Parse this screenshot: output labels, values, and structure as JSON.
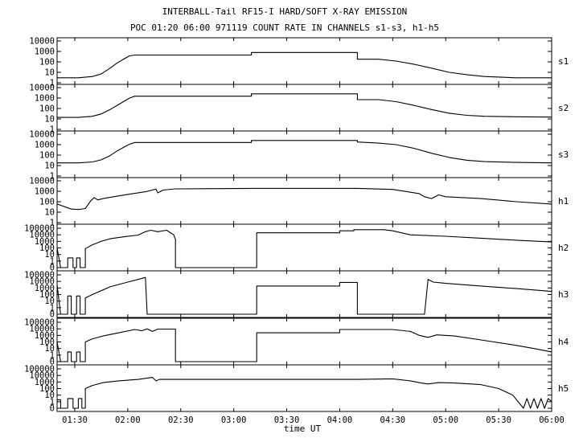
{
  "chart_data": {
    "type": "line",
    "title": "INTERBALL-Tail RF15-I HARD/SOFT X-RAY EMISSION",
    "subtitle": "POC 01:20 06:00 971119  COUNT RATE IN CHANNELS s1-s3, h1-h5",
    "xlabel": "time UT",
    "x_range_minutes_ut": [
      80,
      360
    ],
    "x_ticks": [
      {
        "t": 90,
        "label": "01:30"
      },
      {
        "t": 120,
        "label": "02:00"
      },
      {
        "t": 150,
        "label": "02:30"
      },
      {
        "t": 180,
        "label": "03:00"
      },
      {
        "t": 210,
        "label": "03:30"
      },
      {
        "t": 240,
        "label": "04:00"
      },
      {
        "t": 270,
        "label": "04:30"
      },
      {
        "t": 300,
        "label": "05:00"
      },
      {
        "t": 330,
        "label": "05:30"
      },
      {
        "t": 360,
        "label": "06:00"
      }
    ],
    "y_scale": "log",
    "series": [
      {
        "name": "s1",
        "y_ticks": [
          "10000",
          "1000",
          "100",
          "10",
          "1"
        ],
        "ylim": [
          1,
          10000
        ],
        "points": [
          [
            80,
            3
          ],
          [
            92,
            3
          ],
          [
            100,
            4
          ],
          [
            105,
            7
          ],
          [
            110,
            25
          ],
          [
            114,
            80
          ],
          [
            118,
            200
          ],
          [
            121,
            380
          ],
          [
            124,
            450
          ],
          [
            130,
            450
          ],
          [
            147,
            450
          ],
          [
            190,
            450
          ],
          [
            190,
            800
          ],
          [
            250,
            800
          ],
          [
            250,
            180
          ],
          [
            262,
            180
          ],
          [
            272,
            120
          ],
          [
            282,
            60
          ],
          [
            292,
            25
          ],
          [
            302,
            10
          ],
          [
            312,
            6
          ],
          [
            322,
            4
          ],
          [
            340,
            3
          ],
          [
            360,
            3
          ]
        ]
      },
      {
        "name": "s2",
        "y_ticks": [
          "10000",
          "1000",
          "100",
          "10",
          "1"
        ],
        "ylim": [
          1,
          10000
        ],
        "points": [
          [
            80,
            14
          ],
          [
            92,
            14
          ],
          [
            100,
            18
          ],
          [
            105,
            30
          ],
          [
            110,
            80
          ],
          [
            114,
            200
          ],
          [
            118,
            500
          ],
          [
            121,
            1000
          ],
          [
            124,
            1500
          ],
          [
            130,
            1500
          ],
          [
            147,
            1500
          ],
          [
            190,
            1500
          ],
          [
            190,
            2500
          ],
          [
            250,
            2500
          ],
          [
            250,
            700
          ],
          [
            262,
            700
          ],
          [
            272,
            450
          ],
          [
            282,
            200
          ],
          [
            292,
            80
          ],
          [
            302,
            35
          ],
          [
            312,
            22
          ],
          [
            322,
            18
          ],
          [
            340,
            16
          ],
          [
            360,
            15
          ]
        ]
      },
      {
        "name": "s3",
        "y_ticks": [
          "10000",
          "1000",
          "100",
          "10",
          "1"
        ],
        "ylim": [
          1,
          10000
        ],
        "points": [
          [
            80,
            18
          ],
          [
            92,
            18
          ],
          [
            100,
            22
          ],
          [
            105,
            35
          ],
          [
            110,
            90
          ],
          [
            114,
            250
          ],
          [
            118,
            600
          ],
          [
            121,
            1100
          ],
          [
            124,
            1600
          ],
          [
            130,
            1600
          ],
          [
            147,
            1600
          ],
          [
            190,
            1600
          ],
          [
            190,
            2500
          ],
          [
            250,
            2500
          ],
          [
            250,
            1800
          ],
          [
            262,
            1400
          ],
          [
            272,
            1000
          ],
          [
            282,
            450
          ],
          [
            292,
            150
          ],
          [
            302,
            60
          ],
          [
            312,
            32
          ],
          [
            322,
            24
          ],
          [
            340,
            20
          ],
          [
            360,
            18
          ]
        ]
      },
      {
        "name": "h1",
        "y_ticks": [
          "10000",
          "1000",
          "100",
          "10",
          "1"
        ],
        "ylim": [
          1,
          10000
        ],
        "points": [
          [
            80,
            60
          ],
          [
            85,
            30
          ],
          [
            88,
            20
          ],
          [
            92,
            18
          ],
          [
            96,
            22
          ],
          [
            99,
            120
          ],
          [
            101,
            250
          ],
          [
            103,
            150
          ],
          [
            106,
            200
          ],
          [
            112,
            300
          ],
          [
            120,
            500
          ],
          [
            130,
            900
          ],
          [
            136,
            1600
          ],
          [
            137,
            700
          ],
          [
            140,
            1300
          ],
          [
            147,
            1700
          ],
          [
            190,
            1900
          ],
          [
            250,
            1900
          ],
          [
            270,
            1500
          ],
          [
            285,
            600
          ],
          [
            288,
            300
          ],
          [
            292,
            200
          ],
          [
            296,
            450
          ],
          [
            300,
            300
          ],
          [
            320,
            200
          ],
          [
            340,
            100
          ],
          [
            360,
            60
          ]
        ]
      },
      {
        "name": "h2",
        "y_ticks": [
          "100000",
          "10000",
          "1000",
          "100",
          "10",
          "1",
          "0"
        ],
        "ylim": [
          0,
          100000
        ],
        "points": [
          [
            80,
            100
          ],
          [
            82,
            0
          ],
          [
            86,
            0
          ],
          [
            86,
            3
          ],
          [
            89,
            3
          ],
          [
            89,
            0
          ],
          [
            91,
            0
          ],
          [
            91,
            3
          ],
          [
            93,
            3
          ],
          [
            93,
            0
          ],
          [
            96,
            0
          ],
          [
            96,
            80
          ],
          [
            100,
            300
          ],
          [
            105,
            1000
          ],
          [
            110,
            2500
          ],
          [
            118,
            5000
          ],
          [
            126,
            9000
          ],
          [
            130,
            30000
          ],
          [
            133,
            50000
          ],
          [
            137,
            30000
          ],
          [
            142,
            50000
          ],
          [
            146,
            10000
          ],
          [
            147,
            2000
          ],
          [
            147,
            0
          ],
          [
            193,
            0
          ],
          [
            193,
            20000
          ],
          [
            240,
            20000
          ],
          [
            240,
            40000
          ],
          [
            248,
            40000
          ],
          [
            248,
            60000
          ],
          [
            265,
            60000
          ],
          [
            270,
            40000
          ],
          [
            280,
            10000
          ],
          [
            300,
            6000
          ],
          [
            320,
            3000
          ],
          [
            340,
            1500
          ],
          [
            360,
            800
          ]
        ]
      },
      {
        "name": "h3",
        "y_ticks": [
          "100000",
          "10000",
          "1000",
          "100",
          "10",
          "1",
          "0"
        ],
        "ylim": [
          0,
          100000
        ],
        "points": [
          [
            80,
            3000
          ],
          [
            82,
            0
          ],
          [
            86,
            0
          ],
          [
            86,
            60
          ],
          [
            88,
            60
          ],
          [
            88,
            0
          ],
          [
            91,
            0
          ],
          [
            91,
            60
          ],
          [
            93,
            60
          ],
          [
            93,
            0
          ],
          [
            96,
            0
          ],
          [
            96,
            30
          ],
          [
            100,
            100
          ],
          [
            110,
            1500
          ],
          [
            120,
            8000
          ],
          [
            126,
            20000
          ],
          [
            130,
            40000
          ],
          [
            131,
            0
          ],
          [
            193,
            0
          ],
          [
            193,
            2000
          ],
          [
            240,
            2000
          ],
          [
            240,
            7000
          ],
          [
            250,
            7000
          ],
          [
            250,
            0
          ],
          [
            288,
            0
          ],
          [
            290,
            20000
          ],
          [
            293,
            8000
          ],
          [
            300,
            5000
          ],
          [
            320,
            2000
          ],
          [
            340,
            800
          ],
          [
            360,
            300
          ]
        ]
      },
      {
        "name": "h4",
        "y_ticks": [
          "100000",
          "10000",
          "1000",
          "100",
          "10",
          "1",
          "0"
        ],
        "ylim": [
          0,
          100000
        ],
        "points": [
          [
            80,
            100
          ],
          [
            82,
            0
          ],
          [
            86,
            0
          ],
          [
            86,
            3
          ],
          [
            88,
            3
          ],
          [
            88,
            0
          ],
          [
            91,
            0
          ],
          [
            91,
            3
          ],
          [
            93,
            3
          ],
          [
            93,
            0
          ],
          [
            96,
            0
          ],
          [
            96,
            100
          ],
          [
            100,
            300
          ],
          [
            106,
            800
          ],
          [
            115,
            2500
          ],
          [
            124,
            8000
          ],
          [
            128,
            5000
          ],
          [
            131,
            10000
          ],
          [
            134,
            4000
          ],
          [
            137,
            9000
          ],
          [
            147,
            9000
          ],
          [
            147,
            0
          ],
          [
            193,
            0
          ],
          [
            193,
            2500
          ],
          [
            240,
            2500
          ],
          [
            240,
            8000
          ],
          [
            270,
            8000
          ],
          [
            280,
            4000
          ],
          [
            285,
            1000
          ],
          [
            290,
            500
          ],
          [
            295,
            1200
          ],
          [
            305,
            800
          ],
          [
            320,
            200
          ],
          [
            340,
            30
          ],
          [
            350,
            10
          ],
          [
            360,
            3
          ]
        ]
      },
      {
        "name": "h5",
        "y_ticks": [
          "100000",
          "10000",
          "1000",
          "100",
          "10",
          "1",
          "0"
        ],
        "ylim": [
          0,
          100000
        ],
        "points": [
          [
            80,
            2
          ],
          [
            82,
            2
          ],
          [
            82,
            0
          ],
          [
            86,
            0
          ],
          [
            86,
            3
          ],
          [
            89,
            3
          ],
          [
            89,
            0
          ],
          [
            92,
            0
          ],
          [
            92,
            3
          ],
          [
            94,
            3
          ],
          [
            94,
            0
          ],
          [
            96,
            0
          ],
          [
            96,
            100
          ],
          [
            100,
            300
          ],
          [
            106,
            800
          ],
          [
            115,
            1500
          ],
          [
            126,
            2500
          ],
          [
            134,
            5000
          ],
          [
            136,
            1500
          ],
          [
            138,
            2500
          ],
          [
            147,
            2500
          ],
          [
            190,
            2500
          ],
          [
            250,
            2500
          ],
          [
            270,
            3000
          ],
          [
            280,
            1500
          ],
          [
            286,
            700
          ],
          [
            290,
            500
          ],
          [
            296,
            800
          ],
          [
            305,
            700
          ],
          [
            320,
            400
          ],
          [
            330,
            100
          ],
          [
            338,
            10
          ],
          [
            344,
            0
          ],
          [
            346,
            3
          ],
          [
            348,
            0
          ],
          [
            350,
            3
          ],
          [
            352,
            0
          ],
          [
            354,
            3
          ],
          [
            356,
            0
          ],
          [
            358,
            3
          ],
          [
            360,
            1
          ]
        ]
      }
    ]
  }
}
